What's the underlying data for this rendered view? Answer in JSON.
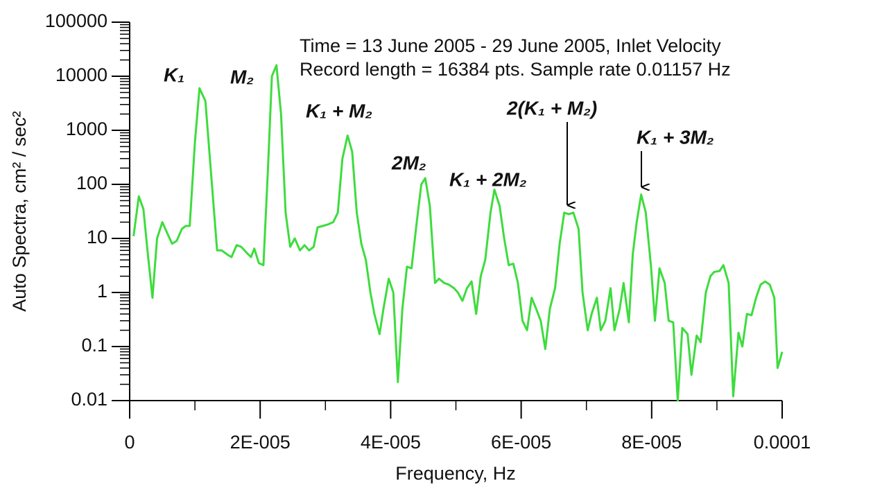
{
  "chart_data": {
    "type": "line",
    "subtitle_lines": [
      "Time = 13 June 2005 - 29 June 2005, Inlet Velocity",
      "Record length = 16384 pts.  Sample rate 0.01157 Hz"
    ],
    "xlabel": "Frequency,  Hz",
    "ylabel": "Auto Spectra, cm² / sec²",
    "log_y": true,
    "xlim": [
      0,
      0.0001
    ],
    "xticks": [
      0,
      {
        "value": 2e-05,
        "label": "2E-005"
      },
      {
        "value": 4e-05,
        "label": "4E-005"
      },
      {
        "value": 6e-05,
        "label": "6E-005"
      },
      {
        "value": 8e-05,
        "label": "8E-005"
      },
      0.0001
    ],
    "ylim": [
      0.01,
      100000
    ],
    "yticks": [
      0.01,
      0.1,
      1,
      10,
      100,
      1000,
      10000,
      100000
    ],
    "annotations": [
      "K₁",
      "M₂",
      "K₁ + M₂",
      "2M₂",
      "K₁ + 2M₂",
      "2(K₁ + M₂)",
      "K₁ + 3M₂"
    ],
    "x": [
      6e-07,
      1.4e-06,
      2.1e-06,
      2.8e-06,
      3.5e-06,
      4.2e-06,
      5e-06,
      5.7e-06,
      6.5e-06,
      7.2e-06,
      8e-06,
      8.6e-06,
      9.2e-06,
      1e-05,
      1.07e-05,
      1.16e-05,
      1.23e-05,
      1.34e-05,
      1.41e-05,
      1.5e-05,
      1.56e-05,
      1.64e-05,
      1.71e-05,
      1.79e-05,
      1.86e-05,
      1.91e-05,
      1.98e-05,
      2.05e-05,
      2.12e-05,
      2.18e-05,
      2.25e-05,
      2.32e-05,
      2.39e-05,
      2.46e-05,
      2.53e-05,
      2.61e-05,
      2.68e-05,
      2.75e-05,
      2.82e-05,
      2.88e-05,
      2.96e-05,
      3.03e-05,
      3.12e-05,
      3.19e-05,
      3.26e-05,
      3.34e-05,
      3.41e-05,
      3.48e-05,
      3.55e-05,
      3.62e-05,
      3.69e-05,
      3.75e-05,
      3.83e-05,
      3.89e-05,
      3.97e-05,
      4.04e-05,
      4.11e-05,
      4.18e-05,
      4.25e-05,
      4.32e-05,
      4.4e-05,
      4.47e-05,
      4.53e-05,
      4.6e-05,
      4.68e-05,
      4.74e-05,
      4.82e-05,
      4.89e-05,
      4.97e-05,
      5.03e-05,
      5.1e-05,
      5.17e-05,
      5.24e-05,
      5.31e-05,
      5.38e-05,
      5.45e-05,
      5.53e-05,
      5.59e-05,
      5.67e-05,
      5.74e-05,
      5.81e-05,
      5.88e-05,
      5.95e-05,
      6.02e-05,
      6.09e-05,
      6.16e-05,
      6.23e-05,
      6.3e-05,
      6.37e-05,
      6.44e-05,
      6.52e-05,
      6.59e-05,
      6.66e-05,
      6.73e-05,
      6.8e-05,
      6.88e-05,
      6.94e-05,
      7.02e-05,
      7.08e-05,
      7.16e-05,
      7.22e-05,
      7.29e-05,
      7.37e-05,
      7.43e-05,
      7.51e-05,
      7.57e-05,
      7.65e-05,
      7.71e-05,
      7.77e-05,
      7.84e-05,
      7.91e-05,
      7.99e-05,
      8.05e-05,
      8.12e-05,
      8.2e-05,
      8.26e-05,
      8.33e-05,
      8.4e-05,
      8.47e-05,
      8.55e-05,
      8.61e-05,
      8.69e-05,
      8.75e-05,
      8.83e-05,
      8.9e-05,
      8.96e-05,
      9.04e-05,
      9.1e-05,
      9.18e-05,
      9.25e-05,
      9.33e-05,
      9.39e-05,
      9.46e-05,
      9.53e-05,
      9.6e-05,
      9.67e-05,
      9.74e-05,
      9.81e-05,
      9.88e-05,
      9.93e-05,
      0.0001
    ],
    "series": [
      {
        "color": "#3ddc3d",
        "values": [
          11,
          60,
          35,
          5,
          0.8,
          10,
          20,
          13,
          8,
          9,
          15,
          17,
          17,
          600,
          6000,
          3500,
          300,
          6,
          6,
          5,
          4.5,
          7.5,
          7,
          5.5,
          4.5,
          6.5,
          3.5,
          3.2,
          200,
          10000,
          16000,
          2000,
          30,
          7,
          10,
          6,
          7.5,
          6,
          7,
          16,
          17,
          18,
          20,
          30,
          300,
          800,
          400,
          30,
          8,
          4,
          1,
          0.4,
          0.17,
          0.5,
          1.8,
          1,
          0.022,
          0.5,
          3,
          2.8,
          20,
          100,
          130,
          40,
          1.5,
          1.8,
          1.5,
          1.4,
          1.2,
          1,
          0.7,
          1.2,
          1.6,
          0.4,
          2,
          4,
          30,
          80,
          40,
          10,
          3.2,
          3.4,
          1.5,
          0.3,
          0.2,
          0.8,
          0.5,
          0.3,
          0.09,
          0.5,
          1.2,
          8,
          30,
          28,
          30,
          15,
          1,
          0.2,
          0.4,
          0.8,
          0.2,
          0.3,
          1.2,
          0.2,
          0.5,
          1.5,
          0.28,
          5,
          20,
          65,
          30,
          3,
          0.3,
          2.8,
          1.5,
          0.3,
          0.28,
          0.01,
          0.22,
          0.17,
          0.03,
          0.16,
          0.12,
          1,
          2,
          2.4,
          2.5,
          3.2,
          1.5,
          0.012,
          0.18,
          0.1,
          0.4,
          0.38,
          0.8,
          1.4,
          1.6,
          1.4,
          0.8,
          0.04,
          0.08
        ]
      }
    ]
  }
}
